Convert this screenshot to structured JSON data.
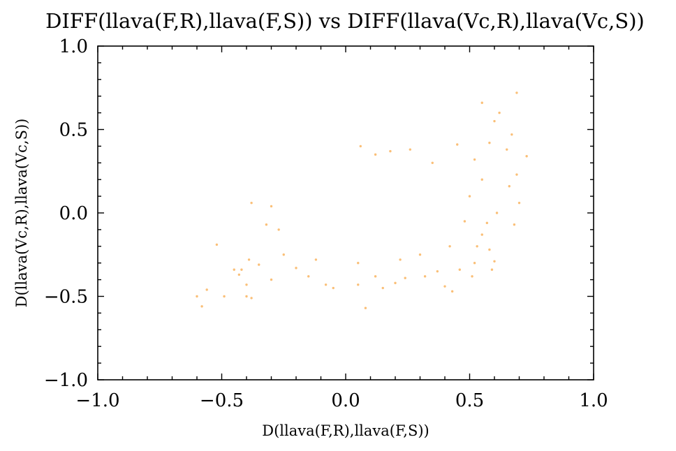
{
  "chart_data": {
    "type": "scatter",
    "title": "DIFF(llava(F,R),llava(F,S)) vs DIFF(llava(Vc,R),llava(Vc,S))",
    "xlabel": "D(llava(F,R),llava(F,S))",
    "ylabel": "D(llava(Vc,R),llava(Vc,S))",
    "xlim": [
      -1.0,
      1.0
    ],
    "ylim": [
      -1.0,
      1.0
    ],
    "xticks": [
      -1.0,
      -0.5,
      0.0,
      0.5,
      1.0
    ],
    "yticks": [
      -1.0,
      -0.5,
      0.0,
      0.5,
      1.0
    ],
    "xtick_labels": [
      "−1.0",
      "−0.5",
      "0.0",
      "0.5",
      "1.0"
    ],
    "ytick_labels": [
      "−1.0",
      "−0.5",
      "0.0",
      "0.5",
      "1.0"
    ],
    "minor_tick_step": 0.1,
    "grid": false,
    "legend": "none",
    "point_color": "#F7941D",
    "points": [
      [
        0.69,
        0.72
      ],
      [
        0.55,
        0.66
      ],
      [
        0.62,
        0.6
      ],
      [
        0.6,
        0.55
      ],
      [
        0.67,
        0.47
      ],
      [
        0.73,
        0.34
      ],
      [
        0.65,
        0.38
      ],
      [
        0.58,
        0.42
      ],
      [
        0.69,
        0.23
      ],
      [
        0.66,
        0.16
      ],
      [
        0.7,
        0.06
      ],
      [
        0.68,
        -0.07
      ],
      [
        0.61,
        0.0
      ],
      [
        0.57,
        -0.06
      ],
      [
        0.55,
        -0.13
      ],
      [
        0.53,
        -0.2
      ],
      [
        0.58,
        -0.22
      ],
      [
        0.6,
        -0.29
      ],
      [
        0.52,
        -0.3
      ],
      [
        0.59,
        -0.34
      ],
      [
        0.51,
        -0.38
      ],
      [
        0.46,
        -0.34
      ],
      [
        0.43,
        -0.47
      ],
      [
        0.4,
        -0.44
      ],
      [
        0.37,
        -0.35
      ],
      [
        0.32,
        -0.38
      ],
      [
        0.24,
        -0.39
      ],
      [
        0.2,
        -0.42
      ],
      [
        0.15,
        -0.45
      ],
      [
        0.12,
        -0.38
      ],
      [
        0.08,
        -0.57
      ],
      [
        0.05,
        -0.43
      ],
      [
        -0.05,
        -0.45
      ],
      [
        -0.08,
        -0.43
      ],
      [
        -0.15,
        -0.38
      ],
      [
        -0.2,
        -0.33
      ],
      [
        -0.25,
        -0.25
      ],
      [
        -0.3,
        -0.4
      ],
      [
        -0.35,
        -0.31
      ],
      [
        -0.39,
        -0.28
      ],
      [
        -0.42,
        -0.34
      ],
      [
        -0.45,
        -0.34
      ],
      [
        -0.4,
        -0.43
      ],
      [
        -0.38,
        -0.51
      ],
      [
        -0.4,
        -0.5
      ],
      [
        -0.49,
        -0.5
      ],
      [
        -0.43,
        -0.37
      ],
      [
        -0.52,
        -0.19
      ],
      [
        -0.56,
        -0.46
      ],
      [
        -0.58,
        -0.56
      ],
      [
        -0.6,
        -0.5
      ],
      [
        -0.38,
        0.06
      ],
      [
        -0.3,
        0.04
      ],
      [
        -0.27,
        -0.1
      ],
      [
        -0.32,
        -0.07
      ],
      [
        0.06,
        0.4
      ],
      [
        0.18,
        0.37
      ],
      [
        0.26,
        0.38
      ],
      [
        0.35,
        0.3
      ],
      [
        0.45,
        0.41
      ],
      [
        0.12,
        0.35
      ],
      [
        0.42,
        -0.2
      ],
      [
        0.48,
        -0.05
      ],
      [
        0.3,
        -0.25
      ],
      [
        0.22,
        -0.28
      ],
      [
        0.05,
        -0.3
      ],
      [
        -0.12,
        -0.28
      ],
      [
        0.5,
        0.1
      ],
      [
        0.55,
        0.2
      ],
      [
        0.52,
        0.32
      ]
    ]
  }
}
